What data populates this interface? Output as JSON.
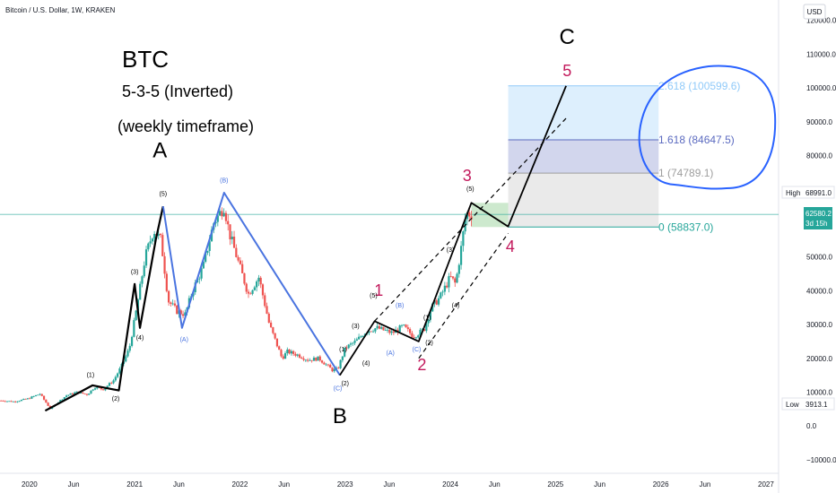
{
  "header": {
    "symbol_line": "Bitcoin / U.S. Dollar, 1W, KRAKEN",
    "currency": "USD"
  },
  "annotations": {
    "ticker": "BTC",
    "pattern": "5-3-5 (Inverted)",
    "timeframe": "(weekly timeframe)"
  },
  "price_badges": {
    "high_label": "High",
    "high_value": "68991.0",
    "last_value": "62580.2",
    "countdown": "3d 15h",
    "low_label": "Low",
    "low_value": "3913.1"
  },
  "fib_levels": [
    {
      "label": "2.618 (100599.6)",
      "price": 100599.6,
      "color": "#90caf9"
    },
    {
      "label": "1.618 (84647.5)",
      "price": 84647.5,
      "color": "#5c6bc0"
    },
    {
      "label": "1 (74789.1)",
      "price": 74789.1,
      "color": "#9e9e9e"
    },
    {
      "label": "0 (58837.0)",
      "price": 58837.0,
      "color": "#26a69a"
    }
  ],
  "chart_data": {
    "type": "line",
    "title": "Bitcoin / U.S. Dollar, 1W, KRAKEN",
    "xlabel": "",
    "ylabel": "USD",
    "x_ticks": [
      "2020",
      "Jun",
      "2021",
      "Jun",
      "2022",
      "Jun",
      "2023",
      "Jun",
      "2024",
      "Jun",
      "2025",
      "Jun",
      "2026",
      "Jun",
      "2027"
    ],
    "x_tick_values": [
      2020.0,
      2020.42,
      2021.0,
      2021.42,
      2022.0,
      2022.42,
      2023.0,
      2023.42,
      2024.0,
      2024.42,
      2025.0,
      2025.42,
      2026.0,
      2026.42,
      2027.0
    ],
    "y_ticks": [
      "120000.0",
      "110000.0",
      "100000.0",
      "90000.0",
      "80000.0",
      "70000.0",
      "60000.0",
      "50000.0",
      "40000.0",
      "30000.0",
      "20000.0",
      "10000.0",
      "0.0",
      "−10000.0"
    ],
    "y_tick_values": [
      120000,
      110000,
      100000,
      90000,
      80000,
      70000,
      60000,
      50000,
      40000,
      30000,
      20000,
      10000,
      0,
      -10000
    ],
    "xlim": [
      2019.72,
      2027.12
    ],
    "ylim": [
      -14000,
      126000
    ],
    "grid": false,
    "price_series": {
      "name": "BTC/USD weekly",
      "x": [
        2019.73,
        2019.85,
        2019.98,
        2020.1,
        2020.2,
        2020.25,
        2020.35,
        2020.45,
        2020.55,
        2020.62,
        2020.7,
        2020.8,
        2020.88,
        2020.95,
        2021.02,
        2021.1,
        2021.18,
        2021.25,
        2021.32,
        2021.4,
        2021.48,
        2021.55,
        2021.65,
        2021.75,
        2021.85,
        2021.9,
        2022.0,
        2022.08,
        2022.18,
        2022.28,
        2022.4,
        2022.45,
        2022.55,
        2022.65,
        2022.75,
        2022.88,
        2022.93,
        2023.0,
        2023.1,
        2023.2,
        2023.3,
        2023.45,
        2023.55,
        2023.65,
        2023.75,
        2023.82,
        2023.9,
        2024.0,
        2024.05,
        2024.1,
        2024.15,
        2024.2
      ],
      "y": [
        7500,
        7200,
        8000,
        9500,
        5000,
        6500,
        9000,
        10000,
        9300,
        11500,
        10800,
        13500,
        18000,
        23000,
        35000,
        50000,
        58000,
        55000,
        37000,
        34000,
        33000,
        40000,
        47000,
        60000,
        65000,
        57000,
        47000,
        39000,
        44000,
        30000,
        20000,
        22000,
        21000,
        19500,
        20000,
        16500,
        16800,
        23000,
        25000,
        28000,
        29000,
        27500,
        29500,
        26500,
        28500,
        35000,
        38000,
        44000,
        42000,
        52000,
        63000,
        62580.2
      ]
    },
    "wave_A": {
      "name": "Wave A",
      "color": "#000000",
      "x": [
        2020.15,
        2020.6,
        2020.85,
        2021.0,
        2021.05,
        2021.2,
        2021.27
      ],
      "y": [
        4500,
        12000,
        10500,
        42000,
        29000,
        55000,
        65000
      ]
    },
    "wave_B": {
      "name": "Wave B",
      "color": "#4a74e0",
      "x": [
        2021.27,
        2021.45,
        2021.85,
        2022.95
      ],
      "y": [
        65000,
        29000,
        69000,
        15000
      ]
    },
    "wave_C": {
      "name": "Wave C",
      "color": "#000000",
      "x": [
        2022.95,
        2023.28,
        2023.7,
        2024.2,
        2024.55,
        2025.1
      ],
      "y": [
        15000,
        31000,
        25000,
        66000,
        59000,
        100600
      ]
    },
    "channel_upper": {
      "x": [
        2023.28,
        2025.1
      ],
      "y": [
        31000,
        91000
      ]
    },
    "channel_lower": {
      "x": [
        2023.7,
        2024.55
      ],
      "y": [
        20000,
        57000
      ]
    },
    "fib_box": {
      "x_start": 2024.55,
      "x_end": 2025.98,
      "values": [
        100599.6,
        84647.5,
        74789.1,
        58837.0
      ]
    },
    "green_zone": {
      "x_start": 2024.2,
      "x_end": 2024.55,
      "y_low": 58837.0,
      "y_high": 66000
    },
    "current_price": 62580.2,
    "wave_labels_major": [
      {
        "text": "A",
        "x": 2021.24,
        "y": 79500,
        "color": "#000000"
      },
      {
        "text": "B",
        "x": 2022.95,
        "y": 800,
        "color": "#000000"
      },
      {
        "text": "C",
        "x": 2025.11,
        "y": 113000,
        "color": "#000000"
      },
      {
        "text": "1",
        "x": 2023.32,
        "y": 38500,
        "color": "#c2185b"
      },
      {
        "text": "2",
        "x": 2023.73,
        "y": 16500,
        "color": "#c2185b"
      },
      {
        "text": "3",
        "x": 2024.16,
        "y": 72500,
        "color": "#c2185b"
      },
      {
        "text": "4",
        "x": 2024.57,
        "y": 51500,
        "color": "#c2185b"
      },
      {
        "text": "5",
        "x": 2025.11,
        "y": 103500,
        "color": "#c2185b"
      }
    ],
    "wave_labels_minor": [
      {
        "text": "(1)",
        "x": 2020.58,
        "y": 14500,
        "color": "#000000"
      },
      {
        "text": "(2)",
        "x": 2020.82,
        "y": 7500,
        "color": "#000000"
      },
      {
        "text": "(3)",
        "x": 2221.0,
        "y": 45000,
        "color": "#000000"
      },
      {
        "text": "(4)",
        "x": 2021.05,
        "y": 25500,
        "color": "#000000"
      },
      {
        "text": "(5)",
        "x": 2021.27,
        "y": 68000,
        "color": "#000000"
      },
      {
        "text": "(A)",
        "x": 2021.47,
        "y": 25000,
        "color": "#4a74e0"
      },
      {
        "text": "(B)",
        "x": 2021.85,
        "y": 72000,
        "color": "#4a74e0"
      },
      {
        "text": "(C)",
        "x": 2022.93,
        "y": 10500,
        "color": "#4a74e0"
      },
      {
        "text": "(1)",
        "x": 2022.98,
        "y": 22000,
        "color": "#000000"
      },
      {
        "text": "(2)",
        "x": 2023.0,
        "y": 12000,
        "color": "#000000"
      },
      {
        "text": "(3)",
        "x": 2023.1,
        "y": 29000,
        "color": "#000000"
      },
      {
        "text": "(4)",
        "x": 2023.2,
        "y": 18000,
        "color": "#000000"
      },
      {
        "text": "(5)",
        "x": 2023.27,
        "y": 38000,
        "color": "#000000"
      },
      {
        "text": "(A)",
        "x": 2023.43,
        "y": 21000,
        "color": "#4a74e0"
      },
      {
        "text": "(B)",
        "x": 2023.52,
        "y": 35000,
        "color": "#4a74e0"
      },
      {
        "text": "(C)",
        "x": 2023.68,
        "y": 22000,
        "color": "#4a74e0"
      },
      {
        "text": "(1)",
        "x": 2023.78,
        "y": 31500,
        "color": "#000000"
      },
      {
        "text": "(2)",
        "x": 2023.8,
        "y": 24000,
        "color": "#000000"
      },
      {
        "text": "(3)",
        "x": 2024.0,
        "y": 51500,
        "color": "#000000"
      },
      {
        "text": "(4)",
        "x": 2024.05,
        "y": 35000,
        "color": "#000000"
      },
      {
        "text": "(5)",
        "x": 2024.19,
        "y": 69500,
        "color": "#000000"
      }
    ]
  }
}
